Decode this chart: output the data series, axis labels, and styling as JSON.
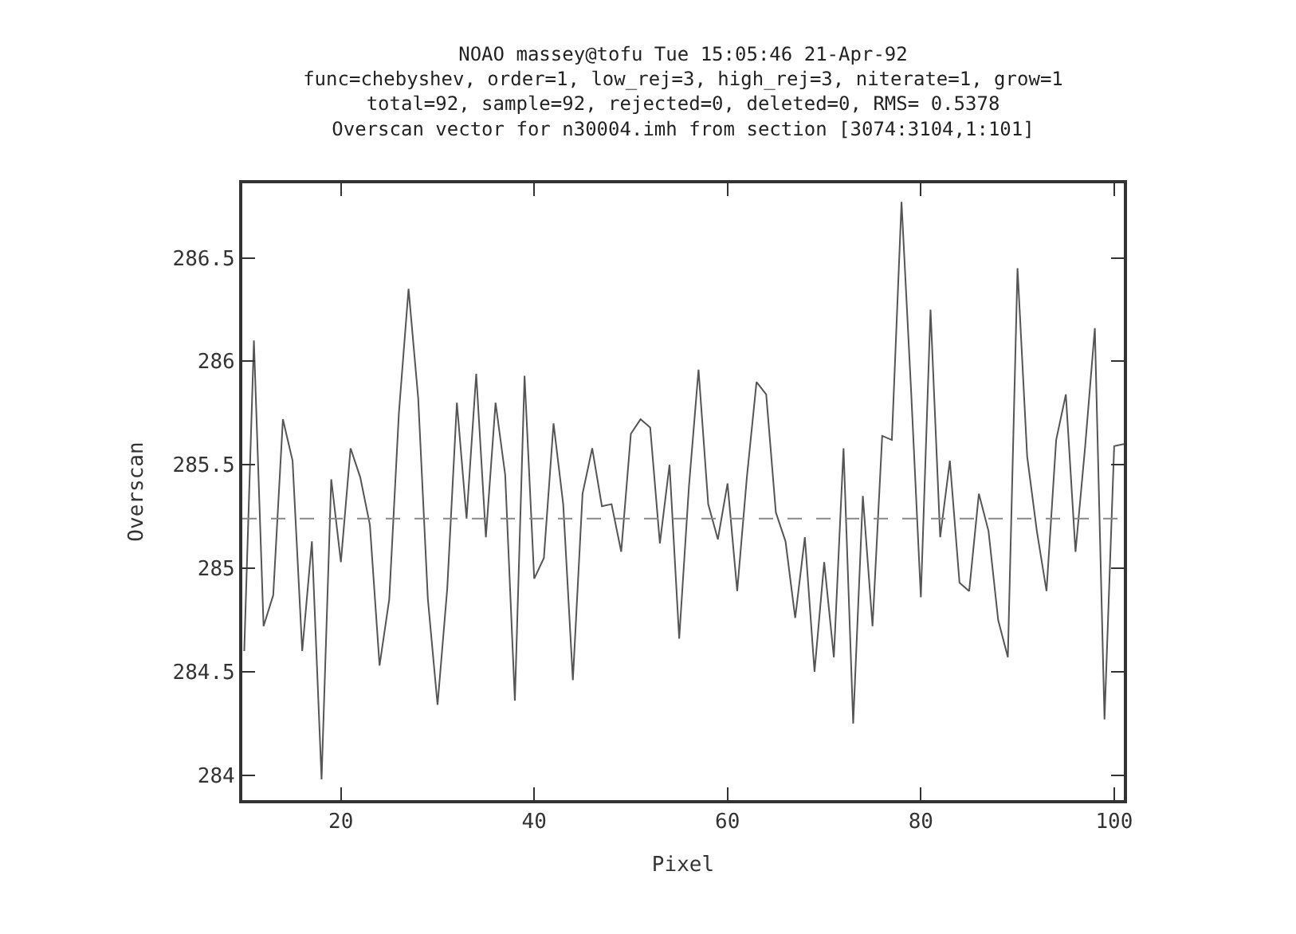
{
  "chart_data": {
    "type": "line",
    "title": "NOAO massey@tofu Tue 15:05:46 21-Apr-92\nfunc=chebyshev, order=1, low_rej=3, high_rej=3, niterate=1, grow=1\ntotal=92, sample=92, rejected=0, deleted=0, RMS= 0.5378\nOverscan vector for n30004.imh from section [3074:3104,1:101]",
    "xlabel": "Pixel",
    "ylabel": "Overscan",
    "x": [
      10,
      11,
      12,
      13,
      14,
      15,
      16,
      17,
      18,
      19,
      20,
      21,
      22,
      23,
      24,
      25,
      26,
      27,
      28,
      29,
      30,
      31,
      32,
      33,
      34,
      35,
      36,
      37,
      38,
      39,
      40,
      41,
      42,
      43,
      44,
      45,
      46,
      47,
      48,
      49,
      50,
      51,
      52,
      53,
      54,
      55,
      56,
      57,
      58,
      59,
      60,
      61,
      62,
      63,
      64,
      65,
      66,
      67,
      68,
      69,
      70,
      71,
      72,
      73,
      74,
      75,
      76,
      77,
      78,
      79,
      80,
      81,
      82,
      83,
      84,
      85,
      86,
      87,
      88,
      89,
      90,
      91,
      92,
      93,
      94,
      95,
      96,
      97,
      98,
      99,
      100,
      101
    ],
    "series": [
      {
        "color": "#555555",
        "values": [
          284.6,
          286.1,
          284.72,
          284.87,
          285.72,
          285.52,
          284.6,
          285.13,
          283.98,
          285.43,
          285.03,
          285.58,
          285.44,
          285.21,
          284.53,
          284.85,
          285.75,
          286.35,
          285.82,
          284.85,
          284.34,
          284.9,
          285.8,
          285.24,
          285.94,
          285.15,
          285.8,
          285.45,
          284.36,
          285.93,
          284.95,
          285.05,
          285.7,
          285.31,
          284.46,
          285.36,
          285.58,
          285.3,
          285.31,
          285.08,
          285.65,
          285.72,
          285.68,
          285.12,
          285.5,
          284.66,
          285.39,
          285.96,
          285.31,
          285.14,
          285.41,
          284.89,
          285.44,
          285.9,
          285.84,
          285.27,
          285.13,
          284.76,
          285.15,
          284.5,
          285.03,
          284.57,
          285.58,
          284.25,
          285.35,
          284.72,
          285.64,
          285.62,
          286.77,
          285.85,
          284.86,
          286.25,
          285.15,
          285.52,
          284.93,
          284.89,
          285.36,
          285.18,
          284.75,
          284.57,
          286.45,
          285.54,
          285.18,
          284.89,
          285.62,
          285.84,
          285.08,
          285.59,
          286.16,
          284.27,
          285.59,
          285.6
        ]
      }
    ],
    "xlim": [
      9.8,
      101
    ],
    "xticks": [
      20,
      40,
      60,
      80,
      100
    ],
    "ylim": [
      283.88,
      286.86
    ],
    "yticks": [
      284,
      284.5,
      285,
      285.5,
      286,
      286.5
    ],
    "ref_lines": [
      {
        "axis": "y",
        "value": 285.24,
        "color": "#888888",
        "line_style": "dashed"
      }
    ],
    "grid": false,
    "legend": false,
    "line_style": "solid",
    "marker": "none"
  }
}
